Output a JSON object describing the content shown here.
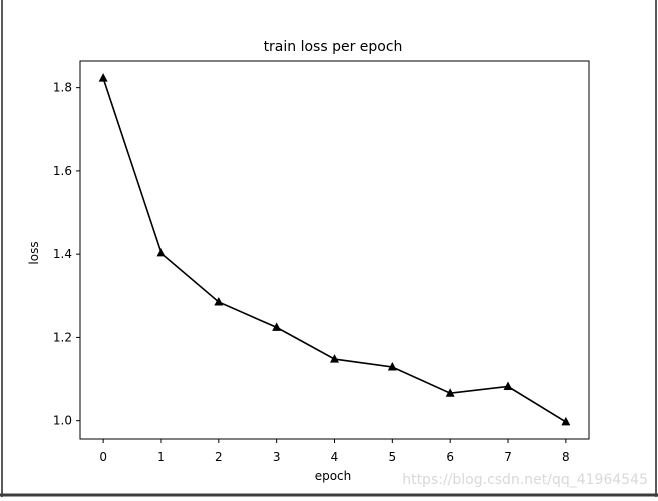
{
  "chart_data": {
    "type": "line",
    "title": "train loss per epoch",
    "xlabel": "epoch",
    "ylabel": "loss",
    "x": [
      0,
      1,
      2,
      3,
      4,
      5,
      6,
      7,
      8
    ],
    "series": [
      {
        "values": [
          1.823,
          1.403,
          1.285,
          1.224,
          1.148,
          1.129,
          1.066,
          1.082,
          0.997
        ],
        "marker": "triangle-up",
        "color": "#000000"
      }
    ],
    "xticks": [
      "0",
      "1",
      "2",
      "3",
      "4",
      "5",
      "6",
      "7",
      "8"
    ],
    "yticks": [
      "1.0",
      "1.2",
      "1.4",
      "1.6",
      "1.8"
    ],
    "ytick_values": [
      1.0,
      1.2,
      1.4,
      1.6,
      1.8
    ],
    "xlim": [
      -0.4,
      8.4
    ],
    "ylim": [
      0.956,
      1.864
    ],
    "grid": false
  },
  "watermark": "https://blog.csdn.net/qq_41964545"
}
